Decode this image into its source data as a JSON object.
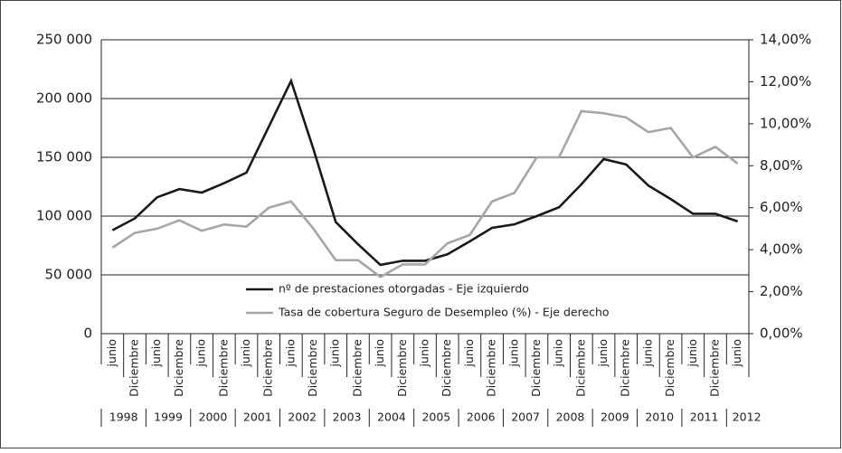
{
  "chart_data": {
    "type": "line",
    "categories": [
      "junio",
      "Diciembre",
      "junio",
      "Diciembre",
      "junio",
      "Diciembre",
      "junio",
      "Diciembre",
      "junio",
      "Diciembre",
      "junio",
      "Diciembre",
      "junio",
      "Diciembre",
      "junio",
      "Diciembre",
      "junio",
      "Diciembre",
      "junio",
      "Diciembre",
      "junio",
      "Diciembre",
      "junio",
      "Diciembre",
      "junio",
      "Diciembre",
      "junio",
      "Diciembre",
      "junio"
    ],
    "years": [
      "1998",
      "1999",
      "2000",
      "2001",
      "2002",
      "2003",
      "2004",
      "2005",
      "2006",
      "2007",
      "2008",
      "2009",
      "2010",
      "2011",
      "2012"
    ],
    "series": [
      {
        "name": "nº de prestaciones otorgadas - Eje izquierdo",
        "color": "#1a1a1a",
        "values": [
          88000,
          98000,
          116000,
          123000,
          120000,
          128000,
          137000,
          176000,
          215000,
          157000,
          95000,
          76000,
          58500,
          62000,
          62000,
          67500,
          78500,
          90000,
          93000,
          100000,
          107500,
          127000,
          148500,
          144000,
          126000,
          114500,
          102000,
          102000,
          95500
        ]
      },
      {
        "name": "Tasa de cobertura Seguro de Desempleo (%) - Eje derecho",
        "color": "#a6a6a6",
        "axis": "y2",
        "values": [
          4.1,
          4.8,
          5.0,
          5.4,
          4.9,
          5.2,
          5.1,
          6.0,
          6.3,
          5.0,
          3.5,
          3.5,
          2.7,
          3.3,
          3.3,
          4.3,
          4.7,
          6.3,
          6.7,
          8.4,
          8.4,
          10.6,
          10.5,
          10.3,
          9.6,
          9.8,
          8.4,
          8.9,
          8.1
        ]
      }
    ],
    "ylim": [
      0,
      250000
    ],
    "yticks": [
      0,
      {
        "value": 50000,
        "label": "50 000"
      },
      {
        "value": 100000,
        "label": "100 000"
      },
      {
        "value": 150000,
        "label": "150 000"
      },
      {
        "value": 200000,
        "label": "200 000"
      },
      {
        "value": 250000,
        "label": "250 000"
      }
    ],
    "y2lim": [
      0,
      14
    ],
    "y2ticks": [
      {
        "value": 0,
        "label": "0,00%"
      },
      {
        "value": 2,
        "label": "2,00%"
      },
      {
        "value": 4,
        "label": "4,00%"
      },
      {
        "value": 6,
        "label": "6,00%"
      },
      {
        "value": 8,
        "label": "8,00%"
      },
      {
        "value": 10,
        "label": "10,00%"
      },
      {
        "value": 12,
        "label": "12,00%"
      },
      {
        "value": 14,
        "label": "14,00%"
      }
    ],
    "grid": true,
    "legend": "bottom"
  }
}
